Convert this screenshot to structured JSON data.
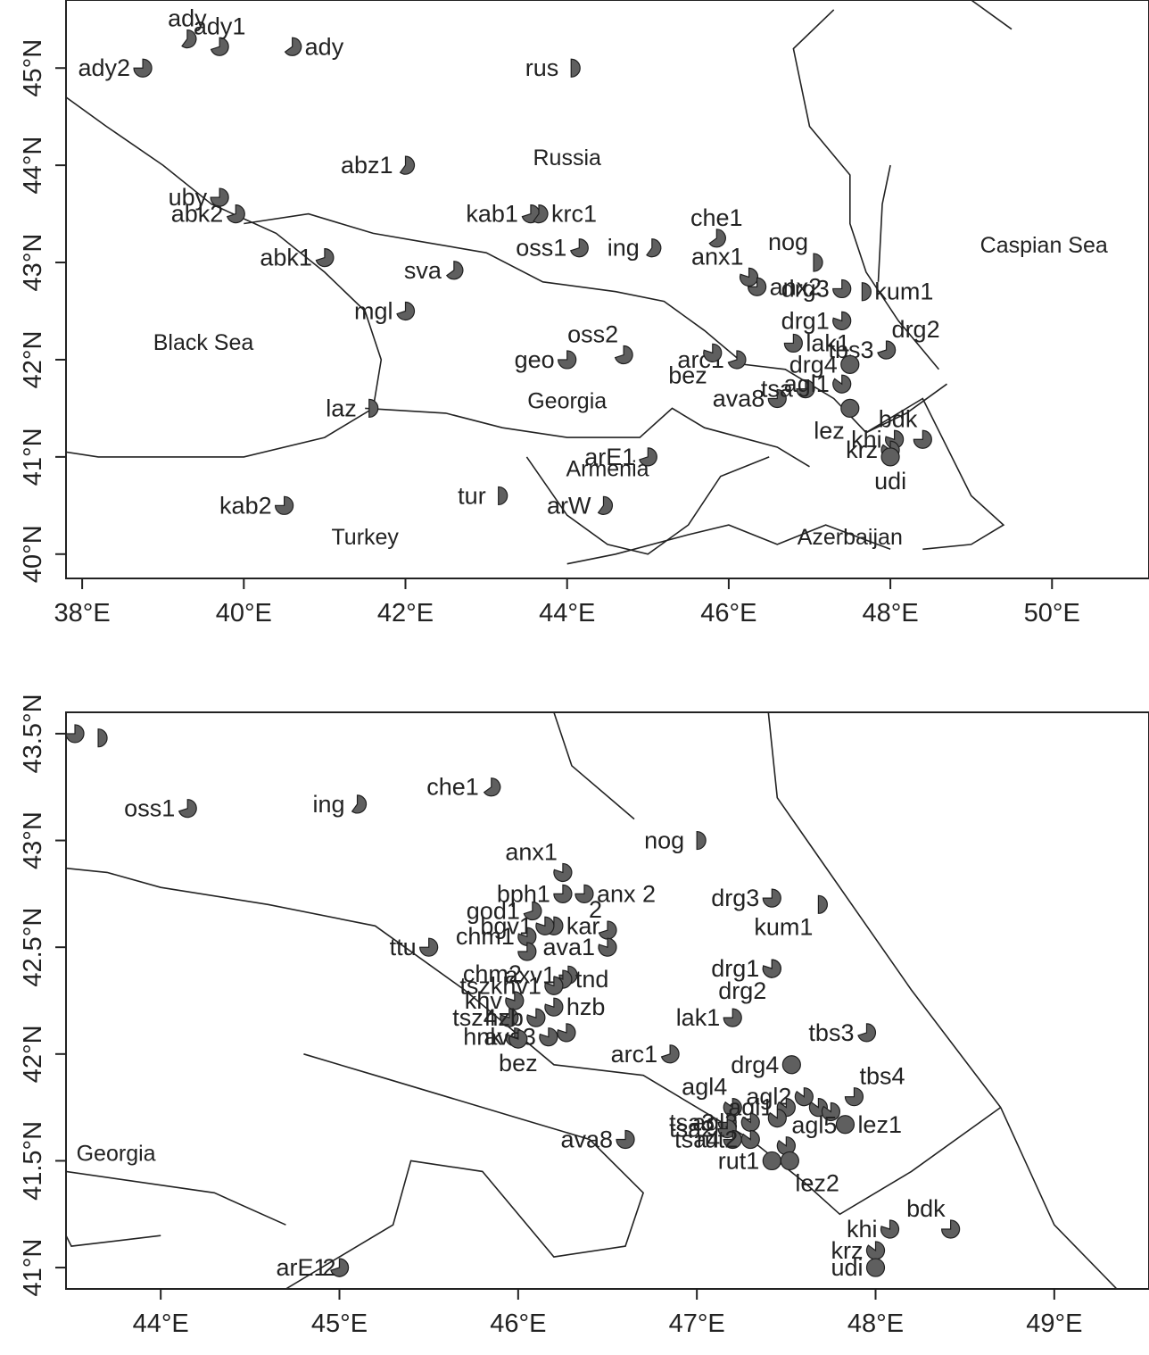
{
  "maps": [
    {
      "id": "overview",
      "x_range": [
        37.8,
        51.2
      ],
      "y_range": [
        39.75,
        45.7
      ],
      "x_ticks": [
        38,
        40,
        42,
        44,
        46,
        48,
        50
      ],
      "x_tick_labels": [
        "38°E",
        "40°E",
        "42°E",
        "44°E",
        "46°E",
        "48°E",
        "50°E"
      ],
      "y_ticks": [
        40,
        41,
        42,
        43,
        44,
        45
      ],
      "y_tick_labels": [
        "40°N",
        "41°N",
        "42°N",
        "43°N",
        "44°N",
        "45°N"
      ],
      "regions": [
        {
          "name": "Russia",
          "lon": 44.0,
          "lat": 44.0
        },
        {
          "name": "Black Sea",
          "lon": 39.5,
          "lat": 42.1
        },
        {
          "name": "Caspian Sea",
          "lon": 49.9,
          "lat": 43.1
        },
        {
          "name": "Georgia",
          "lon": 44.0,
          "lat": 41.5
        },
        {
          "name": "Armenia",
          "lon": 44.5,
          "lat": 40.8
        },
        {
          "name": "Turkey",
          "lon": 41.5,
          "lat": 40.1
        },
        {
          "name": "Azerbaijan",
          "lon": 47.5,
          "lat": 40.1
        }
      ],
      "sites": [
        {
          "label": "ady2",
          "lon": 38.75,
          "lat": 45.0,
          "side": "left",
          "pie": 0.75
        },
        {
          "label": "ady",
          "lon": 39.3,
          "lat": 45.3,
          "side": "above",
          "pie": 0.6
        },
        {
          "label": "ady1",
          "lon": 39.7,
          "lat": 45.22,
          "side": "above",
          "pie": 0.7
        },
        {
          "label": "ady",
          "lon": 40.6,
          "lat": 45.22,
          "side": "right",
          "pie": 0.65
        },
        {
          "label": "rus",
          "lon": 44.05,
          "lat": 45.0,
          "side": "left",
          "pie": 0.5
        },
        {
          "label": "abz1",
          "lon": 42.0,
          "lat": 44.0,
          "side": "left",
          "pie": 0.6
        },
        {
          "label": "uby",
          "lon": 39.7,
          "lat": 43.67,
          "side": "left",
          "pie": 0.75
        },
        {
          "label": "abk2",
          "lon": 39.9,
          "lat": 43.5,
          "side": "left",
          "pie": 0.7
        },
        {
          "label": "kab1",
          "lon": 43.55,
          "lat": 43.5,
          "side": "left",
          "pie": 0.7
        },
        {
          "label": "krc1",
          "lon": 43.65,
          "lat": 43.5,
          "side": "right",
          "pie": 0.6
        },
        {
          "label": "che1",
          "lon": 45.85,
          "lat": 43.25,
          "side": "above",
          "pie": 0.65
        },
        {
          "label": "oss1",
          "lon": 44.15,
          "lat": 43.15,
          "side": "left",
          "pie": 0.7
        },
        {
          "label": "ing",
          "lon": 45.05,
          "lat": 43.15,
          "side": "left",
          "pie": 0.6
        },
        {
          "label": "abk1",
          "lon": 41.0,
          "lat": 43.05,
          "side": "left",
          "pie": 0.7
        },
        {
          "label": "sva",
          "lon": 42.6,
          "lat": 42.92,
          "side": "left",
          "pie": 0.65
        },
        {
          "label": "nog",
          "lon": 47.05,
          "lat": 43.0,
          "side": "above-left",
          "pie": 0.5
        },
        {
          "label": "mgl",
          "lon": 42.0,
          "lat": 42.5,
          "side": "left",
          "pie": 0.7
        },
        {
          "label": "oss2",
          "lon": 44.7,
          "lat": 42.05,
          "side": "above-left",
          "pie": 0.7
        },
        {
          "label": "geo",
          "lon": 44.0,
          "lat": 42.0,
          "side": "left",
          "pie": 0.75
        },
        {
          "label": "laz",
          "lon": 41.55,
          "lat": 41.5,
          "side": "left",
          "pie": 0.5
        },
        {
          "label": "arE1",
          "lon": 45.0,
          "lat": 41.0,
          "side": "left",
          "pie": 0.7
        },
        {
          "label": "tur",
          "lon": 43.15,
          "lat": 40.6,
          "side": "left",
          "pie": 0.5
        },
        {
          "label": "arW",
          "lon": 44.45,
          "lat": 40.5,
          "side": "left",
          "pie": 0.6
        },
        {
          "label": "kab2",
          "lon": 40.5,
          "lat": 40.5,
          "side": "left",
          "pie": 0.75
        },
        {
          "label": "anx1",
          "lon": 46.25,
          "lat": 42.85,
          "side": "above-left",
          "pie": 0.8
        },
        {
          "label": "anx2",
          "lon": 46.35,
          "lat": 42.75,
          "side": "right",
          "pie": 0.75
        },
        {
          "label": "drg3",
          "lon": 47.4,
          "lat": 42.73,
          "side": "left",
          "pie": 0.75
        },
        {
          "label": "kum1",
          "lon": 47.65,
          "lat": 42.7,
          "side": "right",
          "pie": 0.5
        },
        {
          "label": "drg1",
          "lon": 47.4,
          "lat": 42.4,
          "side": "left",
          "pie": 0.8
        },
        {
          "label": "drg2",
          "lon": 47.95,
          "lat": 42.1,
          "side": "above-right",
          "pie": 0.7
        },
        {
          "label": "lak1",
          "lon": 46.8,
          "lat": 42.17,
          "side": "right",
          "pie": 0.75
        },
        {
          "label": "tbs3",
          "lon": 47.95,
          "lat": 42.1,
          "side": "left",
          "pie": 0.7
        },
        {
          "label": "drg4",
          "lon": 47.5,
          "lat": 41.95,
          "side": "left",
          "pie": 1.0
        },
        {
          "label": "arc1",
          "lon": 46.1,
          "lat": 42.0,
          "side": "left",
          "pie": 0.7
        },
        {
          "label": "bez",
          "lon": 45.8,
          "lat": 42.07,
          "side": "below-left",
          "pie": 0.8
        },
        {
          "label": "ava8",
          "lon": 46.6,
          "lat": 41.6,
          "side": "left",
          "pie": 0.75
        },
        {
          "label": "tsa",
          "lon": 46.95,
          "lat": 41.7,
          "side": "left",
          "pie": 0.75
        },
        {
          "label": "agl1",
          "lon": 47.4,
          "lat": 41.75,
          "side": "left",
          "pie": 0.85
        },
        {
          "label": "lez",
          "lon": 47.5,
          "lat": 41.5,
          "side": "below-left",
          "pie": 1.0
        },
        {
          "label": "bdk",
          "lon": 48.4,
          "lat": 41.18,
          "side": "above-left",
          "pie": 0.75
        },
        {
          "label": "khi",
          "lon": 48.05,
          "lat": 41.18,
          "side": "left",
          "pie": 0.8
        },
        {
          "label": "krz",
          "lon": 48.0,
          "lat": 41.07,
          "side": "left",
          "pie": 0.85
        },
        {
          "label": "udi",
          "lon": 48.0,
          "lat": 41.0,
          "side": "below",
          "pie": 1.0
        }
      ]
    },
    {
      "id": "detail",
      "x_range": [
        43.47,
        49.53
      ],
      "y_range": [
        40.9,
        43.6
      ],
      "x_ticks": [
        44,
        45,
        46,
        47,
        48,
        49
      ],
      "x_tick_labels": [
        "44°E",
        "45°E",
        "46°E",
        "47°E",
        "48°E",
        "49°E"
      ],
      "y_ticks": [
        41.0,
        41.5,
        42.0,
        42.5,
        43.0,
        43.5
      ],
      "y_tick_labels": [
        "41°N",
        "41.5°N",
        "42°N",
        "42.5°N",
        "43°N",
        "43.5°N"
      ],
      "regions": [
        {
          "name": "Georgia",
          "lon": 43.75,
          "lat": 41.5
        }
      ],
      "sites": [
        {
          "label": "",
          "lon": 43.52,
          "lat": 43.5,
          "side": "none",
          "pie": 0.75
        },
        {
          "label": "",
          "lon": 43.65,
          "lat": 43.48,
          "side": "none",
          "pie": 0.5
        },
        {
          "label": "oss1",
          "lon": 44.15,
          "lat": 43.15,
          "side": "left",
          "pie": 0.7
        },
        {
          "label": "ing",
          "lon": 45.1,
          "lat": 43.17,
          "side": "left",
          "pie": 0.6
        },
        {
          "label": "che1",
          "lon": 45.85,
          "lat": 43.25,
          "side": "left",
          "pie": 0.65
        },
        {
          "label": "nog",
          "lon": 47.0,
          "lat": 43.0,
          "side": "left",
          "pie": 0.5
        },
        {
          "label": "anx1",
          "lon": 46.25,
          "lat": 42.85,
          "side": "above-left",
          "pie": 0.8
        },
        {
          "label": "bph1",
          "lon": 46.25,
          "lat": 42.75,
          "side": "left",
          "pie": 0.75
        },
        {
          "label": "anx 2",
          "lon": 46.37,
          "lat": 42.75,
          "side": "right",
          "pie": 0.75
        },
        {
          "label": "drg3",
          "lon": 47.42,
          "lat": 42.73,
          "side": "left",
          "pie": 0.75
        },
        {
          "label": "kum1",
          "lon": 47.68,
          "lat": 42.7,
          "side": "below-left",
          "pie": 0.5
        },
        {
          "label": "god1",
          "lon": 46.08,
          "lat": 42.67,
          "side": "left",
          "pie": 0.7
        },
        {
          "label": "kar",
          "lon": 46.2,
          "lat": 42.6,
          "side": "right",
          "pie": 0.8
        },
        {
          "label": "2",
          "lon": 46.5,
          "lat": 42.58,
          "side": "above-left",
          "pie": 0.7
        },
        {
          "label": "bgv1",
          "lon": 46.15,
          "lat": 42.6,
          "side": "left",
          "pie": 0.8
        },
        {
          "label": "chm1",
          "lon": 46.05,
          "lat": 42.55,
          "side": "left",
          "pie": 0.8
        },
        {
          "label": "ttu",
          "lon": 45.5,
          "lat": 42.5,
          "side": "left",
          "pie": 0.75
        },
        {
          "label": "ava1",
          "lon": 46.5,
          "lat": 42.5,
          "side": "left",
          "pie": 0.8
        },
        {
          "label": "chm2",
          "lon": 46.05,
          "lat": 42.48,
          "side": "below-left",
          "pie": 0.75
        },
        {
          "label": "axv1",
          "lon": 46.28,
          "lat": 42.37,
          "side": "left",
          "pie": 0.75
        },
        {
          "label": "tnd",
          "lon": 46.25,
          "lat": 42.35,
          "side": "right",
          "pie": 0.8
        },
        {
          "label": "drg1",
          "lon": 47.42,
          "lat": 42.4,
          "side": "left",
          "pie": 0.8
        },
        {
          "label": "drg2",
          "lon": 47.42,
          "lat": 42.4,
          "side": "below-left",
          "pie": 0.8
        },
        {
          "label": "tszkhv1",
          "lon": 46.2,
          "lat": 42.32,
          "side": "left",
          "pie": 0.8
        },
        {
          "label": "hzb",
          "lon": 46.2,
          "lat": 42.22,
          "side": "right",
          "pie": 0.8
        },
        {
          "label": "khv",
          "lon": 45.98,
          "lat": 42.25,
          "side": "left",
          "pie": 0.8
        },
        {
          "label": "tsz4",
          "lon": 45.95,
          "lat": 42.17,
          "side": "left",
          "pie": 0.8
        },
        {
          "label": "hzb",
          "lon": 46.1,
          "lat": 42.17,
          "side": "left",
          "pie": 0.8
        },
        {
          "label": "hnk",
          "lon": 45.98,
          "lat": 42.08,
          "side": "left",
          "pie": 0.8
        },
        {
          "label": "ava3",
          "lon": 46.17,
          "lat": 42.08,
          "side": "left",
          "pie": 0.8
        },
        {
          "label": "bez",
          "lon": 46.0,
          "lat": 42.07,
          "side": "below",
          "pie": 0.8
        },
        {
          "label": "",
          "lon": 46.27,
          "lat": 42.1,
          "side": "none",
          "pie": 0.8
        },
        {
          "label": "lak1",
          "lon": 47.2,
          "lat": 42.17,
          "side": "left",
          "pie": 0.75
        },
        {
          "label": "tbs3",
          "lon": 47.95,
          "lat": 42.1,
          "side": "left",
          "pie": 0.7
        },
        {
          "label": "arc1",
          "lon": 46.85,
          "lat": 42.0,
          "side": "left",
          "pie": 0.7
        },
        {
          "label": "drg4",
          "lon": 47.53,
          "lat": 41.95,
          "side": "left",
          "pie": 1.0
        },
        {
          "label": "tbs4",
          "lon": 47.88,
          "lat": 41.8,
          "side": "above-right",
          "pie": 0.75
        },
        {
          "label": "agl4",
          "lon": 47.2,
          "lat": 41.75,
          "side": "above-left",
          "pie": 0.85
        },
        {
          "label": "agl2",
          "lon": 47.6,
          "lat": 41.8,
          "side": "left",
          "pie": 0.85
        },
        {
          "label": "agl1",
          "lon": 47.5,
          "lat": 41.75,
          "side": "left",
          "pie": 0.85
        },
        {
          "label": "tsa3",
          "lon": 47.17,
          "lat": 41.68,
          "side": "left",
          "pie": 0.75
        },
        {
          "label": "agl3",
          "lon": 47.3,
          "lat": 41.68,
          "side": "left",
          "pie": 0.85
        },
        {
          "label": "",
          "lon": 47.45,
          "lat": 41.7,
          "side": "none",
          "pie": 0.85
        },
        {
          "label": "",
          "lon": 47.68,
          "lat": 41.75,
          "side": "none",
          "pie": 0.85
        },
        {
          "label": "",
          "lon": 47.75,
          "lat": 41.73,
          "side": "none",
          "pie": 0.85
        },
        {
          "label": "lez1",
          "lon": 47.83,
          "lat": 41.67,
          "side": "right",
          "pie": 1.0
        },
        {
          "label": "tsa2",
          "lon": 47.17,
          "lat": 41.65,
          "side": "left",
          "pie": 0.75
        },
        {
          "label": "ava8",
          "lon": 46.6,
          "lat": 41.6,
          "side": "left",
          "pie": 0.75
        },
        {
          "label": "tsa4",
          "lon": 47.2,
          "lat": 41.6,
          "side": "left",
          "pie": 0.75
        },
        {
          "label": "rut2",
          "lon": 47.3,
          "lat": 41.6,
          "side": "left",
          "pie": 0.85
        },
        {
          "label": "agl5",
          "lon": 47.5,
          "lat": 41.57,
          "side": "above-right",
          "pie": 0.85
        },
        {
          "label": "rut1",
          "lon": 47.42,
          "lat": 41.5,
          "side": "left",
          "pie": 1.0
        },
        {
          "label": "lez2",
          "lon": 47.52,
          "lat": 41.5,
          "side": "below-right",
          "pie": 1.0
        },
        {
          "label": "bdk",
          "lon": 48.42,
          "lat": 41.18,
          "side": "above-left",
          "pie": 0.75
        },
        {
          "label": "khi",
          "lon": 48.08,
          "lat": 41.18,
          "side": "left",
          "pie": 0.8
        },
        {
          "label": "krz",
          "lon": 48.0,
          "lat": 41.08,
          "side": "left",
          "pie": 0.85
        },
        {
          "label": "udi",
          "lon": 48.0,
          "lat": 41.0,
          "side": "left",
          "pie": 1.0
        },
        {
          "label": "arE1",
          "lon": 45.0,
          "lat": 41.0,
          "side": "left",
          "pie": 0.7
        },
        {
          "label": "2",
          "lon": 45.0,
          "lat": 41.0,
          "side": "left-near",
          "pie": 0.7
        }
      ]
    }
  ],
  "colors": {
    "marker_fill": "#5f5f5f",
    "marker_stroke": "#1f1f1f",
    "line": "#222222"
  }
}
